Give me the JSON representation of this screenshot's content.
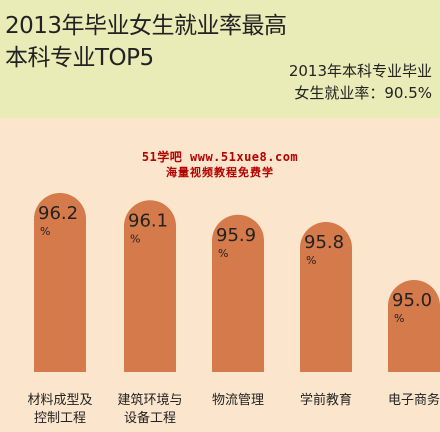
{
  "header": {
    "title_line1": "2013年毕业女生就业率最高",
    "title_line2": "本科专业TOP5",
    "subtitle_line1": "2013年本科专业毕业",
    "subtitle_line2": "女生就业率：90.5%"
  },
  "watermark": {
    "line1": "51学吧 www.51xue8.com",
    "line2": "海量视频教程免费学"
  },
  "colors": {
    "bar": "#d57a4a",
    "header_bg": "#eaecb8",
    "body_bg": "#fbe6cd"
  },
  "chart_data": {
    "type": "bar",
    "categories": [
      "材料成型及控制工程",
      "建筑环境与设备工程",
      "物流管理",
      "学前教育",
      "电子商务"
    ],
    "category_lines": [
      [
        "材料成型及",
        "控制工程"
      ],
      [
        "建筑环境与",
        "设备工程"
      ],
      [
        "物流管理"
      ],
      [
        "学前教育"
      ],
      [
        "电子商务"
      ]
    ],
    "values": [
      96.2,
      96.1,
      95.9,
      95.8,
      95.0
    ],
    "value_unit": "%",
    "title": "2013年毕业女生就业率最高本科专业TOP5",
    "xlabel": "",
    "ylabel": "",
    "grid": false,
    "legend": "none"
  }
}
